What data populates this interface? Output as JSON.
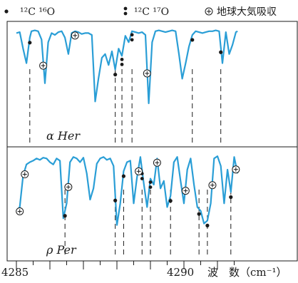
{
  "chart_data": {
    "type": "line",
    "legend": {
      "position": "top",
      "items": [
        {
          "marker": "dot",
          "label": "¹²C ¹⁶O"
        },
        {
          "marker": "double-dot",
          "label": "¹²C ¹⁷O"
        },
        {
          "marker": "circled-plus",
          "label": "地球大気吸収"
        }
      ]
    },
    "x_axis": {
      "label": "波　数（cm⁻¹）",
      "range": [
        4285,
        4291.6
      ],
      "ticks": [
        {
          "value": 4285,
          "label": "4285"
        },
        {
          "value": 4290,
          "label": "4290"
        }
      ],
      "minor_tick_step": 0.5
    },
    "y_axis": {
      "label": "",
      "range": [
        0,
        1
      ],
      "tick_labels": false
    },
    "line_color": "#2a9ed6",
    "panels": [
      {
        "name": "α Her",
        "x": [
          4285.0,
          4285.1,
          4285.2,
          4285.3,
          4285.4,
          4285.45,
          4285.55,
          4285.65,
          4285.75,
          4285.85,
          4285.95,
          4286.05,
          4286.15,
          4286.25,
          4286.35,
          4286.45,
          4286.55,
          4286.65,
          4286.75,
          4286.85,
          4286.95,
          4287.05,
          4287.15,
          4287.25,
          4287.35,
          4287.45,
          4287.55,
          4287.65,
          4287.75,
          4287.85,
          4287.95,
          4288.05,
          4288.15,
          4288.25,
          4288.35,
          4288.45,
          4288.55,
          4288.65,
          4288.75,
          4288.85,
          4288.95,
          4289.05,
          4289.15,
          4289.25,
          4289.35,
          4289.45,
          4289.55,
          4289.65,
          4289.75,
          4289.85,
          4289.95,
          4290.05,
          4290.15,
          4290.25,
          4290.35,
          4290.45,
          4290.55,
          4290.65,
          4290.75,
          4290.85,
          4290.95,
          4291.05,
          4291.15,
          4291.25,
          4291.35,
          4291.45,
          4291.55,
          4291.6
        ],
        "y": [
          0.95,
          0.96,
          0.78,
          0.62,
          0.9,
          0.97,
          0.98,
          0.97,
          0.88,
          0.4,
          0.85,
          0.95,
          0.93,
          0.96,
          0.97,
          0.9,
          0.72,
          0.95,
          0.97,
          0.96,
          0.94,
          0.95,
          0.95,
          0.93,
          0.2,
          0.45,
          0.68,
          0.72,
          0.6,
          0.75,
          0.55,
          0.78,
          0.7,
          0.92,
          0.85,
          0.97,
          0.96,
          0.95,
          0.96,
          0.93,
          0.18,
          0.85,
          0.97,
          0.98,
          0.97,
          0.96,
          0.97,
          0.98,
          0.97,
          0.72,
          0.45,
          0.62,
          0.8,
          0.93,
          0.97,
          0.96,
          0.95,
          0.96,
          0.97,
          0.97,
          0.98,
          0.97,
          0.62,
          0.96,
          0.72,
          0.82,
          0.96,
          0.97
        ],
        "co16": [
          4285.4,
          4287.95,
          4290.25,
          4291.1
        ],
        "co17": [
          4288.15,
          4288.45
        ],
        "telluric": [
          4285.8,
          4286.75,
          4288.9
        ]
      },
      {
        "name": "ρ Per",
        "x": [
          4285.0,
          4285.1,
          4285.2,
          4285.3,
          4285.4,
          4285.5,
          4285.6,
          4285.7,
          4285.8,
          4285.9,
          4286.0,
          4286.1,
          4286.2,
          4286.3,
          4286.4,
          4286.5,
          4286.6,
          4286.7,
          4286.8,
          4286.9,
          4287.0,
          4287.1,
          4287.2,
          4287.3,
          4287.4,
          4287.5,
          4287.6,
          4287.7,
          4287.8,
          4287.9,
          4288.0,
          4288.1,
          4288.2,
          4288.3,
          4288.4,
          4288.5,
          4288.6,
          4288.7,
          4288.8,
          4288.9,
          4289.0,
          4289.1,
          4289.2,
          4289.3,
          4289.4,
          4289.5,
          4289.6,
          4289.7,
          4289.8,
          4289.9,
          4290.0,
          4290.1,
          4290.2,
          4290.3,
          4290.4,
          4290.5,
          4290.6,
          4290.7,
          4290.8,
          4290.9,
          4291.0,
          4291.1,
          4291.2,
          4291.3,
          4291.4,
          4291.5,
          4291.6
        ],
        "y": [
          0.25,
          0.3,
          0.72,
          0.87,
          0.9,
          0.92,
          0.95,
          0.93,
          0.96,
          0.95,
          0.9,
          0.87,
          0.95,
          0.92,
          0.15,
          0.35,
          0.9,
          0.97,
          0.95,
          0.9,
          0.96,
          0.75,
          0.4,
          0.55,
          0.88,
          0.95,
          0.97,
          0.93,
          0.95,
          0.85,
          0.06,
          0.35,
          0.78,
          0.9,
          0.92,
          0.35,
          0.7,
          0.97,
          0.62,
          0.3,
          0.68,
          0.6,
          0.95,
          0.55,
          0.65,
          0.3,
          0.45,
          0.9,
          0.97,
          0.65,
          0.35,
          0.8,
          0.95,
          0.6,
          0.3,
          0.25,
          0.08,
          0.12,
          0.35,
          0.95,
          0.98,
          0.85,
          0.35,
          0.8,
          0.5,
          0.97,
          0.75
        ],
        "co16": [
          4286.45,
          4287.95,
          4288.2,
          4289.6,
          4290.45,
          4290.7,
          4291.4
        ],
        "co17": [
          4288.75,
          4289.0
        ],
        "telluric": [
          4285.1,
          4285.25,
          4286.55,
          4288.65,
          4289.2,
          4290.05,
          4290.85,
          4291.55
        ]
      }
    ]
  }
}
